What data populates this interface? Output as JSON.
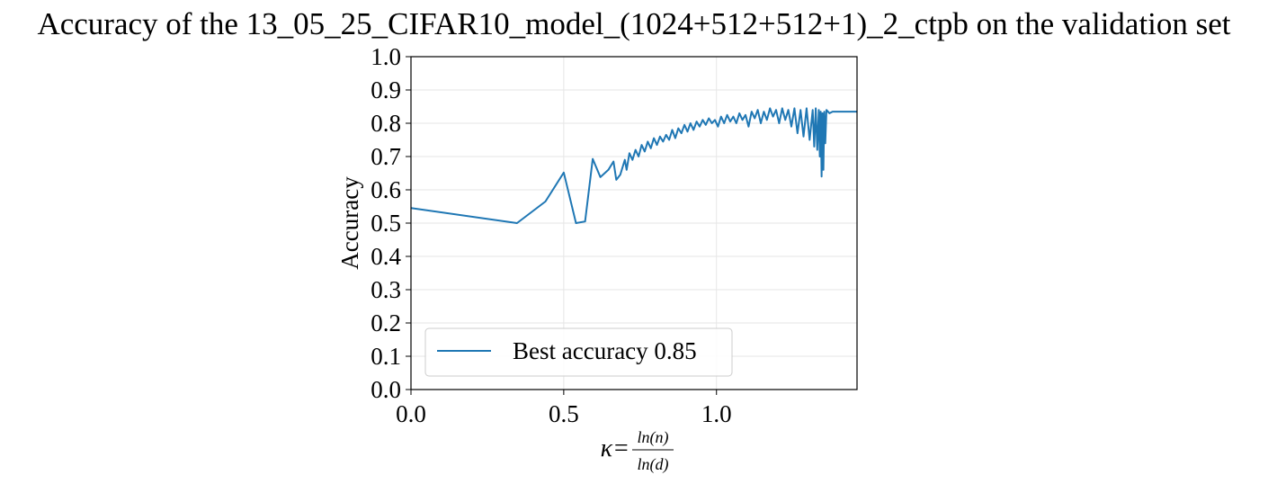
{
  "chart_data": {
    "type": "line",
    "title": "Accuracy of the 13_05_25_CIFAR10_model_(1024+512+512+1)_2_ctpb on the validation set",
    "xlabel": {
      "prefix": "κ=",
      "numerator": "ln(n)",
      "denominator": "ln(d)"
    },
    "ylabel": "Accuracy",
    "xlim": [
      0.0,
      1.46
    ],
    "ylim": [
      0.0,
      1.0
    ],
    "xticks": [
      0.0,
      0.5,
      1.0
    ],
    "xtick_labels": [
      "0.0",
      "0.5",
      "1.0"
    ],
    "yticks": [
      0.0,
      0.1,
      0.2,
      0.3,
      0.4,
      0.5,
      0.6,
      0.7,
      0.8,
      0.9,
      1.0
    ],
    "ytick_labels": [
      "0.0",
      "0.1",
      "0.2",
      "0.3",
      "0.4",
      "0.5",
      "0.6",
      "0.7",
      "0.8",
      "0.9",
      "1.0"
    ],
    "grid": true,
    "legend_position": "lower-left",
    "series": [
      {
        "name": "Best accuracy 0.85",
        "color": "#1f77b4",
        "x": [
          0.0,
          0.347,
          0.44,
          0.5,
          0.54,
          0.57,
          0.595,
          0.62,
          0.646,
          0.663,
          0.672,
          0.685,
          0.7,
          0.706,
          0.715,
          0.725,
          0.735,
          0.745,
          0.755,
          0.765,
          0.775,
          0.785,
          0.795,
          0.805,
          0.815,
          0.825,
          0.835,
          0.845,
          0.855,
          0.865,
          0.875,
          0.885,
          0.895,
          0.905,
          0.915,
          0.925,
          0.935,
          0.945,
          0.955,
          0.965,
          0.975,
          0.985,
          0.995,
          1.005,
          1.015,
          1.025,
          1.035,
          1.045,
          1.055,
          1.065,
          1.075,
          1.085,
          1.095,
          1.105,
          1.115,
          1.125,
          1.135,
          1.145,
          1.155,
          1.165,
          1.175,
          1.185,
          1.195,
          1.205,
          1.215,
          1.225,
          1.235,
          1.245,
          1.255,
          1.265,
          1.275,
          1.285,
          1.295,
          1.305,
          1.315,
          1.32,
          1.325,
          1.33,
          1.335,
          1.338,
          1.341,
          1.344,
          1.347,
          1.35,
          1.353,
          1.356,
          1.36,
          1.37,
          1.38,
          1.39,
          1.4,
          1.42,
          1.44,
          1.46
        ],
        "y": [
          0.545,
          0.5,
          0.565,
          0.652,
          0.5,
          0.505,
          0.693,
          0.638,
          0.66,
          0.685,
          0.63,
          0.645,
          0.69,
          0.66,
          0.71,
          0.69,
          0.72,
          0.7,
          0.735,
          0.715,
          0.745,
          0.725,
          0.755,
          0.735,
          0.76,
          0.745,
          0.765,
          0.75,
          0.78,
          0.755,
          0.785,
          0.77,
          0.795,
          0.775,
          0.8,
          0.78,
          0.805,
          0.79,
          0.81,
          0.795,
          0.815,
          0.8,
          0.81,
          0.79,
          0.82,
          0.8,
          0.825,
          0.805,
          0.82,
          0.8,
          0.83,
          0.81,
          0.825,
          0.79,
          0.835,
          0.815,
          0.84,
          0.8,
          0.835,
          0.81,
          0.845,
          0.82,
          0.84,
          0.8,
          0.845,
          0.81,
          0.84,
          0.79,
          0.845,
          0.77,
          0.84,
          0.76,
          0.845,
          0.75,
          0.84,
          0.73,
          0.845,
          0.72,
          0.84,
          0.7,
          0.835,
          0.64,
          0.83,
          0.66,
          0.835,
          0.74,
          0.84,
          0.83,
          0.835,
          0.835,
          0.835,
          0.835,
          0.835,
          0.835
        ]
      }
    ]
  }
}
